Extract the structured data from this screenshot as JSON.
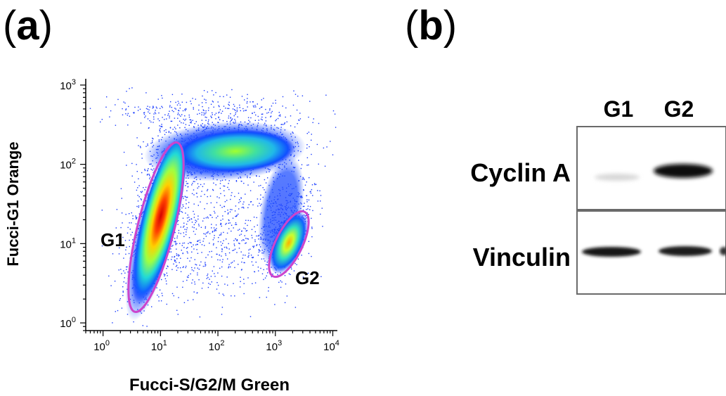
{
  "panel_a": {
    "label_open": "(",
    "label_letter": "a",
    "label_close": ")",
    "y_axis_label": "Fucci-G1 Orange",
    "x_axis_label": "Fucci-S/G2/M Green",
    "chart_data": {
      "type": "scatter",
      "x_scale": "log",
      "y_scale": "log",
      "xlim": [
        0.5,
        12000
      ],
      "ylim": [
        0.8,
        1200
      ],
      "x_ticks": [
        {
          "base": "10",
          "exp": "0",
          "value": 1
        },
        {
          "base": "10",
          "exp": "1",
          "value": 10
        },
        {
          "base": "10",
          "exp": "2",
          "value": 100
        },
        {
          "base": "10",
          "exp": "3",
          "value": 1000
        },
        {
          "base": "10",
          "exp": "4",
          "value": 10000
        }
      ],
      "y_ticks": [
        {
          "base": "10",
          "exp": "0",
          "value": 1
        },
        {
          "base": "10",
          "exp": "1",
          "value": 10
        },
        {
          "base": "10",
          "exp": "2",
          "value": 100
        },
        {
          "base": "10",
          "exp": "3",
          "value": 1000
        }
      ],
      "gates": [
        {
          "name": "G1",
          "center": [
            12,
            14
          ],
          "color": "#cc44cc"
        },
        {
          "name": "G2",
          "center": [
            1900,
            11
          ],
          "color": "#cc44cc"
        }
      ]
    }
  },
  "panel_b": {
    "label_open": "(",
    "label_letter": "b",
    "label_close": ")",
    "lanes": [
      "G1",
      "G2"
    ],
    "rows": [
      "Cyclin A",
      "Vinculin"
    ]
  }
}
